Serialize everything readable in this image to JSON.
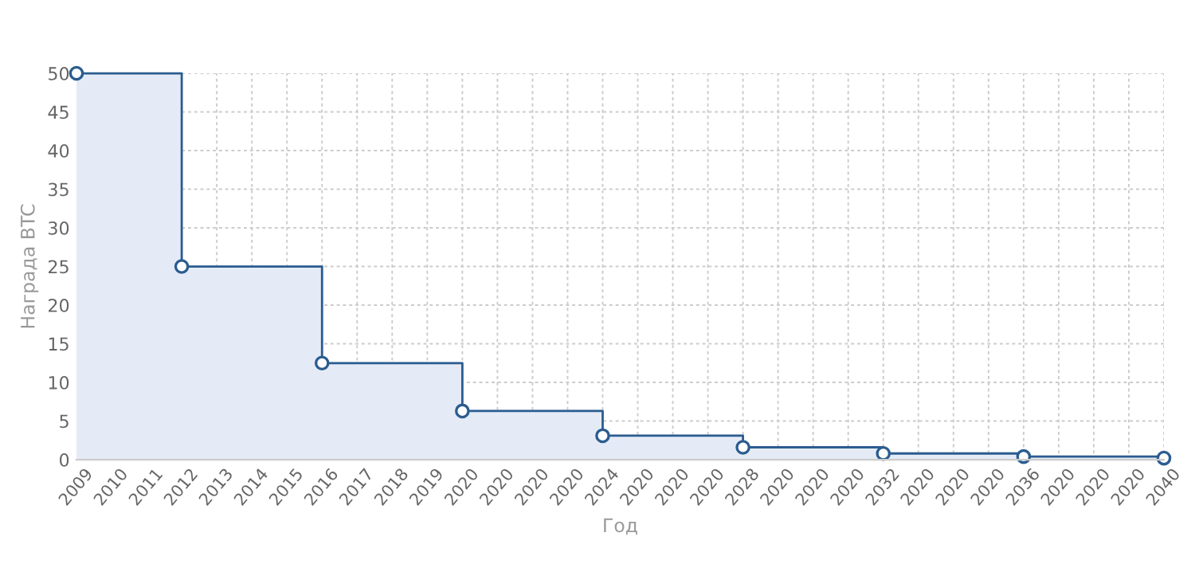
{
  "chart_data": {
    "type": "step",
    "xlabel": "Год",
    "ylabel": "Награда BTC",
    "categories": [
      "2009",
      "2010",
      "2011",
      "2012",
      "2013",
      "2014",
      "2015",
      "2016",
      "2017",
      "2018",
      "2019",
      "2020",
      "2020",
      "2020",
      "2020",
      "2024",
      "2020",
      "2020",
      "2020",
      "2028",
      "2020",
      "2020",
      "2020",
      "2032",
      "2020",
      "2020",
      "2020",
      "2036",
      "2020",
      "2020",
      "2020",
      "2040"
    ],
    "series": [
      {
        "color": "#2b5c8f",
        "values": [
          50,
          null,
          null,
          25,
          null,
          null,
          null,
          12.5,
          null,
          null,
          null,
          6.3,
          null,
          null,
          null,
          3.1,
          null,
          null,
          null,
          1.6,
          null,
          null,
          null,
          0.8,
          null,
          null,
          null,
          0.4,
          null,
          null,
          null,
          0.2
        ]
      }
    ],
    "ylim": [
      0,
      50
    ],
    "yticks": [
      0,
      5,
      10,
      15,
      20,
      25,
      30,
      35,
      40,
      45,
      50
    ],
    "grid": true,
    "marker": "circle",
    "line_style": "solid"
  }
}
